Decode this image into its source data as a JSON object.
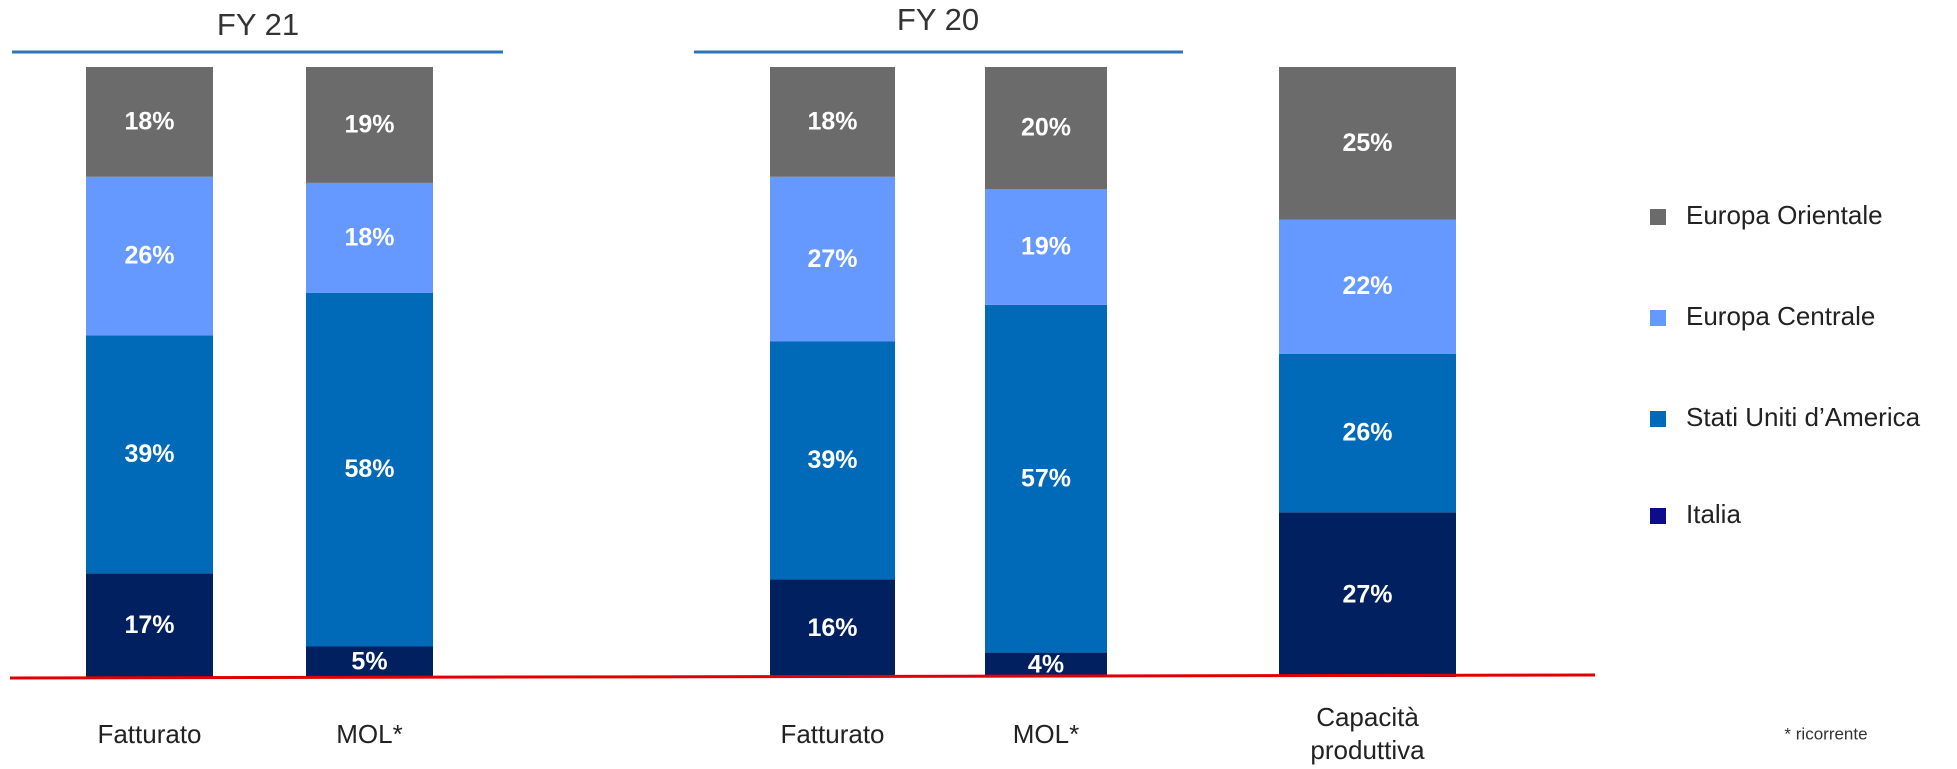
{
  "chart_data": {
    "type": "stacked_bar",
    "groups": [
      "FY 21",
      "FY 20"
    ],
    "categories": [
      "Fatturato",
      "MOL*",
      "Fatturato",
      "MOL*",
      "Capacità produttiva"
    ],
    "series": [
      {
        "name": "Italia",
        "color": "#002060",
        "values": [
          17,
          5,
          16,
          4,
          27
        ],
        "value_labels": [
          "17%",
          "5%",
          "16%",
          "4%",
          "27%"
        ]
      },
      {
        "name": "Stati Uniti d’America",
        "color": "#0069b8",
        "values": [
          39,
          58,
          39,
          57,
          26
        ],
        "value_labels": [
          "39%",
          "58%",
          "39%",
          "57%",
          "26%"
        ]
      },
      {
        "name": "Europa Centrale",
        "color": "#6699ff",
        "values": [
          26,
          18,
          27,
          19,
          22
        ],
        "value_labels": [
          "26%",
          "18%",
          "27%",
          "19%",
          "22%"
        ]
      },
      {
        "name": "Europa Orientale",
        "color": "#6b6b6b",
        "values": [
          18,
          19,
          18,
          20,
          25
        ],
        "value_labels": [
          "18%",
          "19%",
          "18%",
          "20%",
          "25%"
        ]
      }
    ],
    "ylim": [
      0,
      100
    ],
    "legend": "right",
    "footnote": "* ricorrente"
  }
}
